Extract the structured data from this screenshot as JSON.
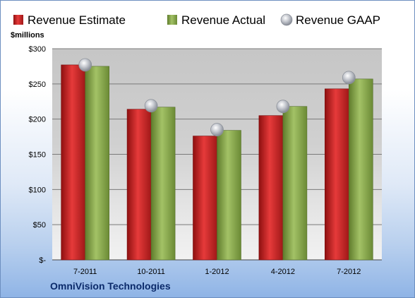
{
  "chart_data": {
    "type": "bar",
    "unit_label": "$millions",
    "categories": [
      "7-2011",
      "10-2011",
      "1-2012",
      "4-2012",
      "7-2012"
    ],
    "series": [
      {
        "name": "Revenue Estimate",
        "kind": "bar",
        "color": "#d42a2a",
        "values": [
          277,
          214,
          176,
          205,
          243
        ]
      },
      {
        "name": "Revenue Actual",
        "kind": "bar",
        "color": "#8fae4e",
        "values": [
          275,
          217,
          184,
          218,
          257
        ]
      },
      {
        "name": "Revenue GAAP",
        "kind": "marker",
        "color": "#b8bcc4",
        "values": [
          277,
          219,
          185,
          218,
          259
        ]
      }
    ],
    "ylim": [
      0,
      300
    ],
    "yticks": [
      0,
      50,
      100,
      150,
      200,
      250,
      300
    ],
    "ytick_labels": [
      "$-",
      "$50",
      "$100",
      "$150",
      "$200",
      "$250",
      "$300"
    ],
    "grid": true,
    "legend": "top"
  },
  "footer": {
    "company": "OmniVision Technologies"
  }
}
